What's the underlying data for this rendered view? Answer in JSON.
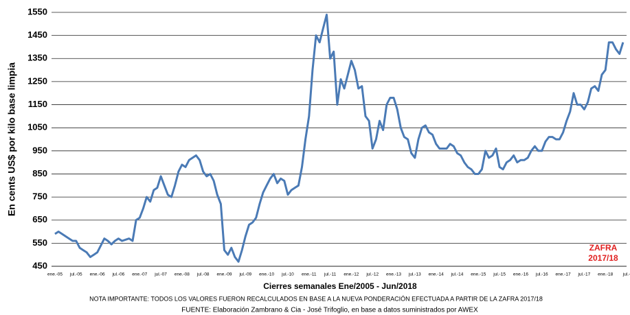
{
  "chart_data": {
    "type": "line",
    "y_label": "En cents US$ por kilo base limpia",
    "x_label": "Cierres semanales  Ene/2005 - Jun/2018",
    "notes": [
      "NOTA IMPORTANTE: TODOS LOS VALORES FUERON RECALCULADOS EN BASE A LA NUEVA PONDERACIÓN EFECTUADA A PARTIR DE LA ZAFRA  2017/18",
      "FUENTE: Elaboración Zambrano & Cia - José Trifoglio, en base a datos suministrados por AWEX"
    ],
    "annotation": [
      "ZAFRA",
      "2017/18"
    ],
    "annotation_color": "#e02020",
    "categories": [
      "ene.-05",
      null,
      null,
      null,
      null,
      null,
      "jul.-05",
      null,
      null,
      null,
      null,
      null,
      "ene.-06",
      null,
      null,
      null,
      null,
      null,
      "jul.-06",
      null,
      null,
      null,
      null,
      null,
      "ene.-07",
      null,
      null,
      null,
      null,
      null,
      "jul.-07",
      null,
      null,
      null,
      null,
      null,
      "ene.-08",
      null,
      null,
      null,
      null,
      null,
      "jul.-08",
      null,
      null,
      null,
      null,
      null,
      "ene.-09",
      null,
      null,
      null,
      null,
      null,
      "jul.-09",
      null,
      null,
      null,
      null,
      null,
      "ene.-10",
      null,
      null,
      null,
      null,
      null,
      "jul.-10",
      null,
      null,
      null,
      null,
      null,
      "ene.-11",
      null,
      null,
      null,
      null,
      null,
      "jul.-11",
      null,
      null,
      null,
      null,
      null,
      "ene.-12",
      null,
      null,
      null,
      null,
      null,
      "jul.-12",
      null,
      null,
      null,
      null,
      null,
      "ene.-13",
      null,
      null,
      null,
      null,
      null,
      "jul.-13",
      null,
      null,
      null,
      null,
      null,
      "ene.-14",
      null,
      null,
      null,
      null,
      null,
      "jul.-14",
      null,
      null,
      null,
      null,
      null,
      "ene.-15",
      null,
      null,
      null,
      null,
      null,
      "jul.-15",
      null,
      null,
      null,
      null,
      null,
      "ene.-16",
      null,
      null,
      null,
      null,
      null,
      "jul.-16",
      null,
      null,
      null,
      null,
      null,
      "ene.-17",
      null,
      null,
      null,
      null,
      null,
      "jul.-17",
      null,
      null,
      null,
      null,
      null,
      "ene.-18",
      null,
      null,
      null,
      null,
      null,
      "jul.-"
    ],
    "series": [
      {
        "color": "#4a7ab5",
        "values": [
          590,
          600,
          590,
          580,
          570,
          560,
          560,
          530,
          520,
          510,
          490,
          500,
          510,
          540,
          570,
          560,
          545,
          560,
          570,
          560,
          565,
          570,
          560,
          650,
          660,
          700,
          750,
          730,
          780,
          790,
          840,
          800,
          760,
          750,
          800,
          860,
          890,
          880,
          910,
          920,
          930,
          910,
          860,
          840,
          850,
          820,
          760,
          720,
          520,
          500,
          530,
          490,
          470,
          520,
          580,
          630,
          640,
          660,
          720,
          770,
          800,
          830,
          850,
          810,
          830,
          820,
          760,
          780,
          790,
          800,
          880,
          1000,
          1100,
          1300,
          1450,
          1420,
          1480,
          1540,
          1350,
          1380,
          1150,
          1260,
          1220,
          1280,
          1340,
          1300,
          1220,
          1230,
          1100,
          1080,
          960,
          1000,
          1080,
          1040,
          1150,
          1180,
          1180,
          1130,
          1050,
          1010,
          1000,
          940,
          920,
          1000,
          1050,
          1060,
          1030,
          1020,
          980,
          960,
          960,
          960,
          980,
          970,
          940,
          930,
          900,
          880,
          870,
          850,
          850,
          870,
          950,
          920,
          930,
          960,
          880,
          870,
          900,
          910,
          930,
          900,
          910,
          910,
          920,
          950,
          970,
          950,
          950,
          990,
          1010,
          1010,
          1000,
          1000,
          1030,
          1080,
          1120,
          1200,
          1150,
          1150,
          1130,
          1160,
          1220,
          1230,
          1210,
          1280,
          1300,
          1420,
          1420,
          1390,
          1370,
          1420,
          null
        ]
      }
    ],
    "ylim": [
      450,
      1550
    ],
    "yticks": [
      450,
      550,
      650,
      750,
      850,
      950,
      1050,
      1150,
      1250,
      1350,
      1450,
      1550
    ],
    "grid": true
  }
}
